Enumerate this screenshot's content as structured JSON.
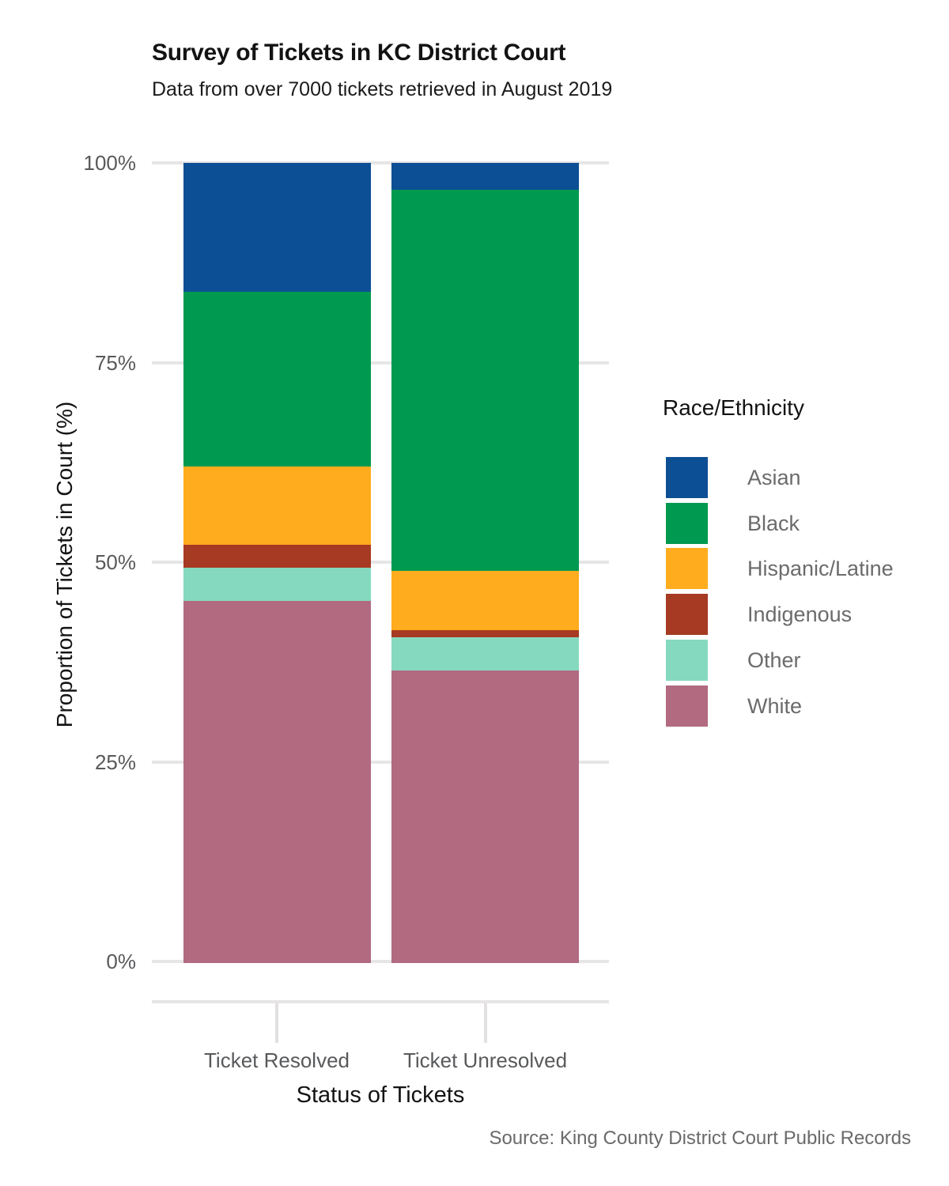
{
  "chart_data": {
    "type": "bar",
    "stacked": true,
    "title": "Survey of Tickets in KC District Court",
    "subtitle": "Data from over 7000 tickets retrieved in August 2019",
    "xlabel": "Status of Tickets",
    "ylabel": "Proportion of Tickets in Court (%)",
    "caption": "Source: King County District Court Public Records",
    "legend_title": "Race/Ethnicity",
    "legend_position": "right",
    "grid": "horizontal-only",
    "categories": [
      "Ticket Resolved",
      "Ticket Unresolved"
    ],
    "series": [
      {
        "name": "Asian",
        "color": "#0D4F94",
        "values": [
          15.9,
          3.2
        ]
      },
      {
        "name": "Black",
        "color": "#009950",
        "values": [
          21.9,
          47.7
        ]
      },
      {
        "name": "Hispanic/Latine",
        "color": "#FFAC1E",
        "values": [
          9.8,
          7.4
        ]
      },
      {
        "name": "Indigenous",
        "color": "#A63A22",
        "values": [
          2.9,
          0.9
        ]
      },
      {
        "name": "Other",
        "color": "#85D9BF",
        "values": [
          4.2,
          4.2
        ]
      },
      {
        "name": "White",
        "color": "#B16A80",
        "values": [
          45.3,
          36.6
        ]
      }
    ],
    "stack_order_bottom_to_top": [
      "White",
      "Other",
      "Indigenous",
      "Hispanic/Latine",
      "Black",
      "Asian"
    ],
    "ylim": [
      0,
      100
    ],
    "y_ticks": [
      0,
      25,
      50,
      75,
      100
    ],
    "y_tick_labels": [
      "0%",
      "25%",
      "50%",
      "75%",
      "100%"
    ],
    "colors": {
      "gridline": "#E7E5E6",
      "axis_text": "#58595B",
      "legend_text": "#6B6B6B",
      "caption_text": "#6A6A6A",
      "title_text": "#131313"
    }
  }
}
